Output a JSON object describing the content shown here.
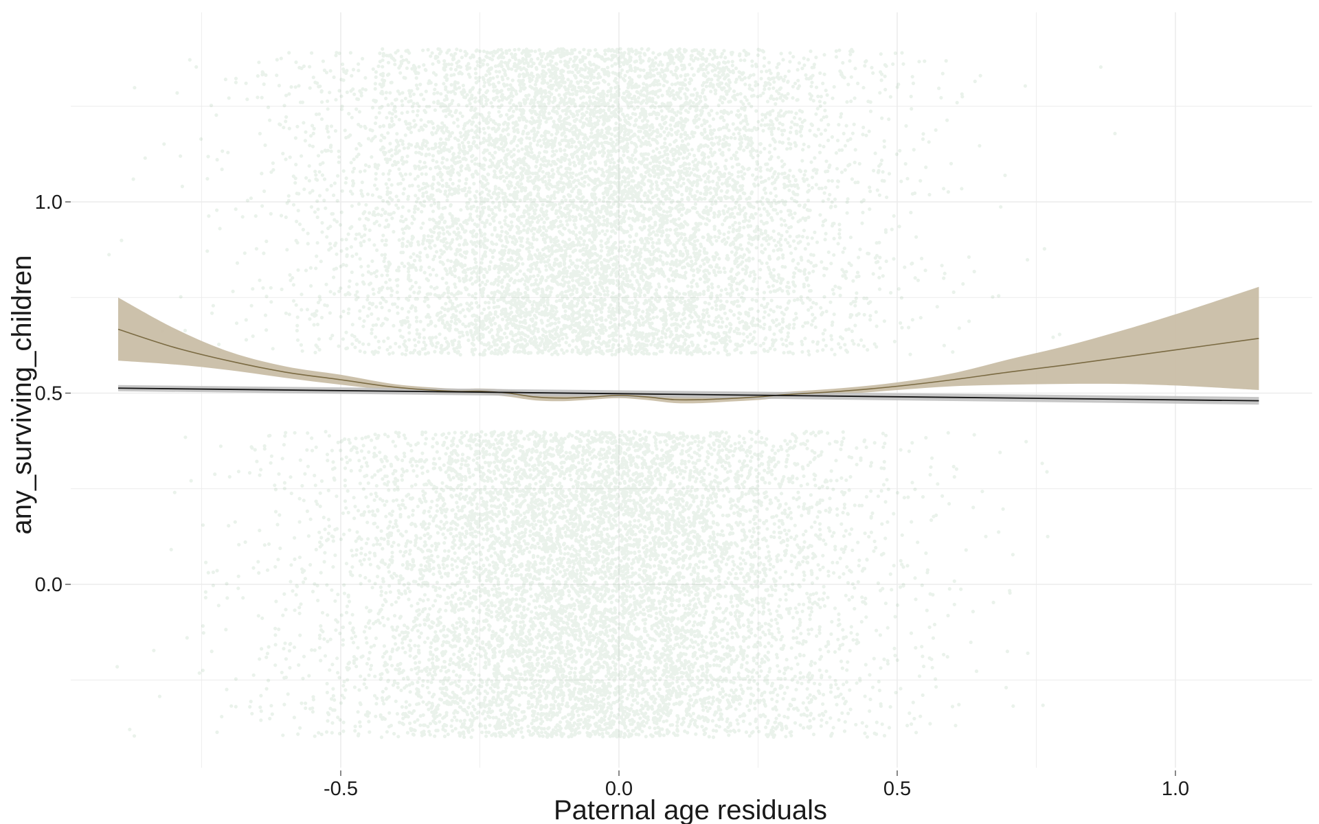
{
  "chart_data": {
    "type": "scatter",
    "title": "",
    "xlabel": "Paternal age residuals",
    "ylabel": "any_surviving_children",
    "xlim": [
      -1.0,
      1.25
    ],
    "ylim": [
      -0.48,
      1.5
    ],
    "x_ticks": [
      {
        "value": -0.5,
        "label": "-0.5"
      },
      {
        "value": 0.0,
        "label": "0.0"
      },
      {
        "value": 0.5,
        "label": "0.5"
      },
      {
        "value": 1.0,
        "label": "1.0"
      }
    ],
    "y_ticks": [
      {
        "value": 0.0,
        "label": "0.0"
      },
      {
        "value": 0.5,
        "label": "0.5"
      },
      {
        "value": 1.0,
        "label": "1.0"
      }
    ],
    "x_minor_ticks": [
      -0.75,
      -0.25,
      0.25,
      0.75
    ],
    "y_minor_ticks": [
      -0.25,
      0.25,
      0.75,
      1.25
    ],
    "grid": true,
    "legend": "none",
    "colors": {
      "points": "#5a9e63",
      "loess_line": "#7a6a42",
      "loess_band": "#c8bca4",
      "linear_line": "#111111",
      "linear_band": "#bdbdbd",
      "grid": "#ececec"
    },
    "points": {
      "description_of_groups": [
        {
          "y_value": 1,
          "jitter_range": [
            0.6,
            1.4
          ],
          "x_center": -0.05,
          "x_sd": 0.24,
          "count": 9000
        },
        {
          "y_value": 0,
          "jitter_range": [
            -0.4,
            0.4
          ],
          "x_center": -0.05,
          "x_sd": 0.24,
          "count": 9000
        }
      ],
      "x_range": [
        -0.92,
        1.15
      ],
      "opacity": 0.13
    },
    "series": [
      {
        "kind": "loess",
        "x": [
          -0.9,
          -0.8,
          -0.7,
          -0.6,
          -0.5,
          -0.4,
          -0.3,
          -0.25,
          -0.2,
          -0.15,
          -0.1,
          -0.05,
          0.0,
          0.05,
          0.1,
          0.15,
          0.2,
          0.25,
          0.3,
          0.4,
          0.5,
          0.6,
          0.7,
          0.8,
          0.9,
          1.0,
          1.15
        ],
        "y": [
          0.667,
          0.62,
          0.584,
          0.555,
          0.535,
          0.515,
          0.505,
          0.505,
          0.5,
          0.49,
          0.487,
          0.49,
          0.494,
          0.49,
          0.483,
          0.483,
          0.486,
          0.49,
          0.496,
          0.505,
          0.518,
          0.535,
          0.555,
          0.573,
          0.593,
          0.613,
          0.643
        ],
        "ci_lower": [
          0.585,
          0.575,
          0.56,
          0.54,
          0.522,
          0.507,
          0.498,
          0.498,
          0.491,
          0.481,
          0.479,
          0.483,
          0.487,
          0.482,
          0.474,
          0.474,
          0.478,
          0.482,
          0.489,
          0.497,
          0.508,
          0.518,
          0.522,
          0.524,
          0.524,
          0.52,
          0.508
        ],
        "ci_upper": [
          0.75,
          0.67,
          0.608,
          0.57,
          0.548,
          0.523,
          0.512,
          0.512,
          0.509,
          0.499,
          0.496,
          0.497,
          0.501,
          0.498,
          0.492,
          0.492,
          0.494,
          0.498,
          0.503,
          0.513,
          0.528,
          0.552,
          0.588,
          0.622,
          0.662,
          0.706,
          0.778
        ]
      },
      {
        "kind": "linear",
        "x": [
          -0.9,
          1.15
        ],
        "y": [
          0.513,
          0.48
        ],
        "ci_lower": [
          0.505,
          0.47
        ],
        "ci_upper": [
          0.521,
          0.49
        ]
      }
    ]
  }
}
